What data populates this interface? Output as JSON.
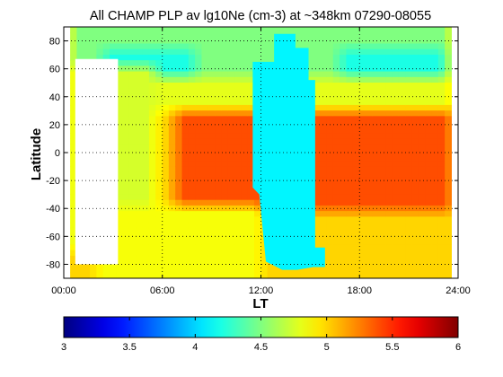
{
  "chart_data": [
    {
      "type": "heatmap",
      "title": "All CHAMP PLP av lg10Ne (cm-3) at ~348km 07290-08055",
      "xlabel": "LT",
      "ylabel": "Latitude",
      "xlim": [
        0,
        24
      ],
      "ylim": [
        -90,
        90
      ],
      "x_ticks": [
        0,
        6,
        12,
        18,
        24
      ],
      "x_tick_labels": [
        "00:00",
        "06:00",
        "12:00",
        "18:00",
        "24:00"
      ],
      "y_ticks": [
        -80,
        -60,
        -40,
        -20,
        0,
        20,
        40,
        60,
        80
      ],
      "y_tick_labels": [
        "-80",
        "-60",
        "-40",
        "-20",
        "0",
        "20",
        "40",
        "60",
        "80"
      ],
      "grid": "dotted",
      "colormap": "jet",
      "clim": [
        3,
        6
      ],
      "x_coverage": [
        0.5,
        23.5
      ],
      "regions": [
        {
          "name": "background",
          "value": 5.0
        },
        {
          "name": "equatorial_peak",
          "lt": [
            9,
            16
          ],
          "lat": [
            -25,
            20
          ],
          "value": 5.7
        },
        {
          "name": "midday_band",
          "lt": [
            7,
            17
          ],
          "lat": [
            -40,
            35
          ],
          "value": 5.4
        },
        {
          "name": "evening_peak",
          "lt": [
            16.5,
            20.5
          ],
          "lat": [
            -20,
            10
          ],
          "value": 5.8
        },
        {
          "name": "evening_band",
          "lt": [
            15,
            23.5
          ],
          "lat": [
            -40,
            30
          ],
          "value": 5.4
        },
        {
          "name": "north_cap",
          "lt": [
            0.5,
            23.5
          ],
          "lat": [
            50,
            90
          ],
          "value": 4.5
        },
        {
          "name": "north_dip_morning",
          "lt": [
            2.5,
            8
          ],
          "lat": [
            55,
            75
          ],
          "value": 4.2
        },
        {
          "name": "north_dip_evening",
          "lt": [
            17,
            23
          ],
          "lat": [
            55,
            75
          ],
          "value": 4.2
        },
        {
          "name": "north_mid",
          "lt": [
            0.5,
            23.5
          ],
          "lat": [
            30,
            55
          ],
          "value": 4.8
        },
        {
          "name": "night_low",
          "lt": [
            0.5,
            5.5
          ],
          "lat": [
            -70,
            60
          ],
          "value": 4.75
        },
        {
          "name": "south_low",
          "lt": [
            2,
            12
          ],
          "lat": [
            -90,
            -40
          ],
          "value": 4.85
        }
      ],
      "data_gaps": [
        {
          "fill_value": 4.1,
          "outline": [
            [
              11.5,
              65
            ],
            [
              12.8,
              65
            ],
            [
              12.8,
              85
            ],
            [
              14.1,
              85
            ],
            [
              14.1,
              75
            ],
            [
              14.9,
              75
            ],
            [
              14.9,
              52
            ],
            [
              15.3,
              52
            ],
            [
              15.3,
              -68
            ],
            [
              15.9,
              -68
            ],
            [
              15.9,
              -82
            ],
            [
              15.2,
              -82
            ],
            [
              14.2,
              -84
            ],
            [
              13.3,
              -84
            ],
            [
              12.3,
              -78
            ],
            [
              11.9,
              -30
            ],
            [
              11.5,
              -25
            ]
          ]
        },
        {
          "fill_value": null,
          "outline": [
            [
              0.7,
              67
            ],
            [
              3.3,
              67
            ],
            [
              3.3,
              -80
            ],
            [
              0.7,
              -80
            ]
          ]
        }
      ],
      "colorbar": {
        "orientation": "horizontal",
        "range": [
          3,
          6
        ],
        "ticks": [
          3,
          3.5,
          4,
          4.5,
          5,
          5.5,
          6
        ],
        "tick_labels": [
          "3",
          "3.5",
          "4",
          "4.5",
          "5",
          "5.5",
          "6"
        ]
      }
    }
  ]
}
